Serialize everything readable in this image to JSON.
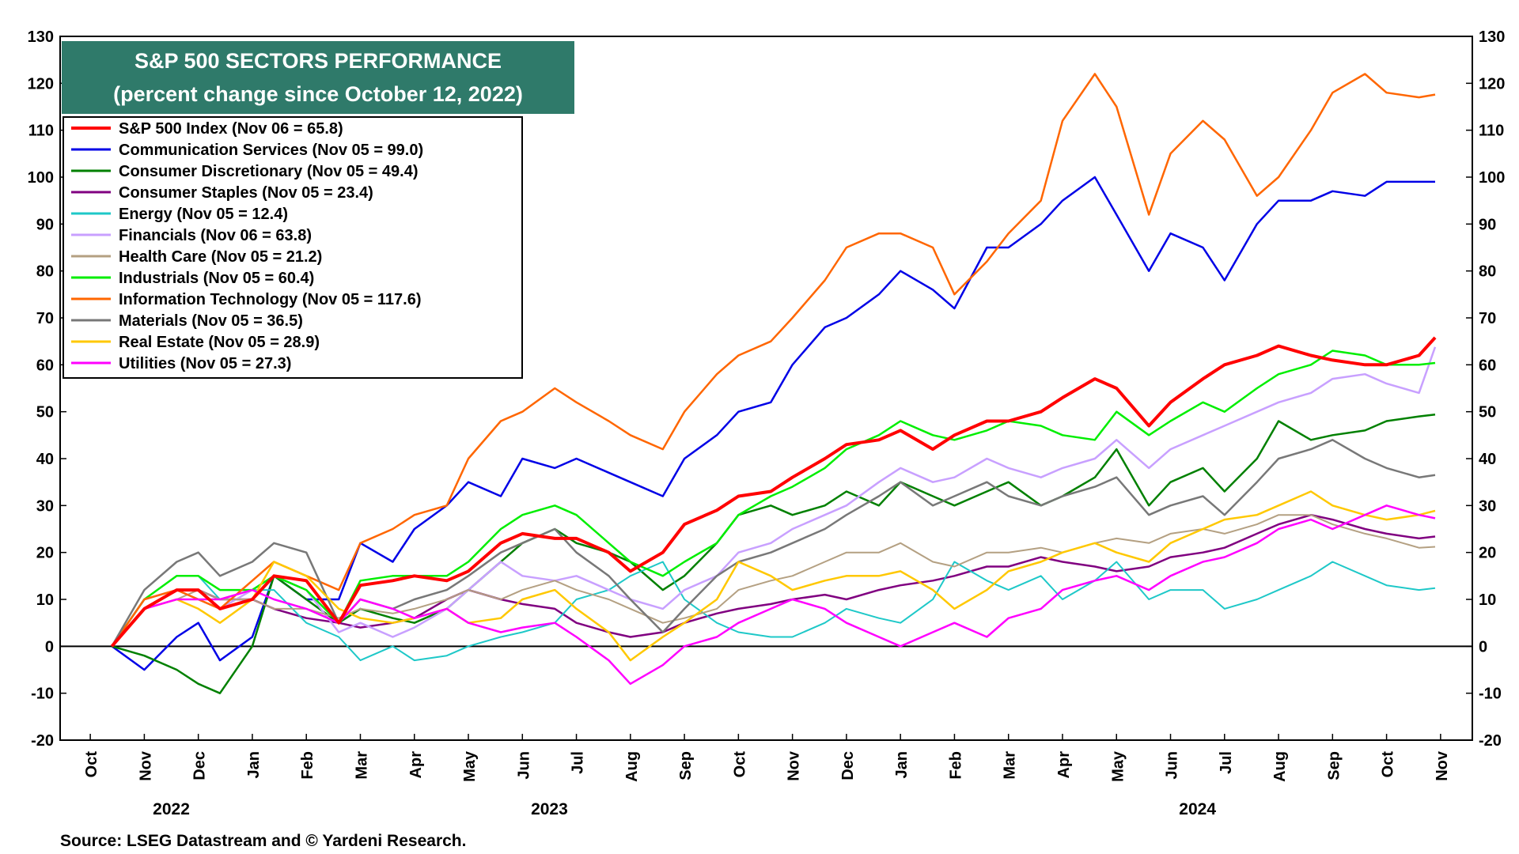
{
  "chart_data": {
    "type": "line",
    "title": "S&P 500 SECTORS PERFORMANCE",
    "subtitle": "(percent change since October 12, 2022)",
    "source": "Source: LSEG Datastream and © Yardeni Research.",
    "ylim": [
      -20,
      130
    ],
    "yticks": [
      "-20",
      "-10",
      "0",
      "10",
      "20",
      "30",
      "40",
      "50",
      "60",
      "70",
      "80",
      "90",
      "100",
      "110",
      "120",
      "130"
    ],
    "months": [
      "Oct",
      "Nov",
      "Dec",
      "Jan",
      "Feb",
      "Mar",
      "Apr",
      "May",
      "Jun",
      "Jul",
      "Aug",
      "Sep",
      "Oct",
      "Nov",
      "Dec",
      "Jan",
      "Feb",
      "Mar",
      "Apr",
      "May",
      "Jun",
      "Jul",
      "Aug",
      "Sep",
      "Oct",
      "Nov"
    ],
    "years": [
      "2022",
      "2023",
      "2024"
    ],
    "x_index_note": "x values are month index: 0 = Oct 2022 ... 25 = Nov 2024",
    "x": [
      0.4,
      1,
      1.6,
      2,
      2.4,
      3,
      3.4,
      4,
      4.6,
      5,
      5.6,
      6,
      6.6,
      7,
      7.6,
      8,
      8.6,
      9,
      9.6,
      10,
      10.6,
      11,
      11.6,
      12,
      12.6,
      13,
      13.6,
      14,
      14.6,
      15,
      15.6,
      16,
      16.6,
      17,
      17.6,
      18,
      18.6,
      19,
      19.6,
      20,
      20.6,
      21,
      21.6,
      22,
      22.6,
      23,
      23.6,
      24,
      24.6,
      24.9
    ],
    "series": [
      {
        "name": "S&P 500 Index",
        "legend": "S&P 500 Index (Nov 06 = 65.8)",
        "color": "#ff0000",
        "width": 4,
        "values": [
          0,
          8,
          12,
          12,
          8,
          10,
          15,
          14,
          5,
          13,
          14,
          15,
          14,
          16,
          22,
          24,
          23,
          23,
          20,
          16,
          20,
          26,
          29,
          32,
          33,
          36,
          40,
          43,
          44,
          46,
          42,
          45,
          48,
          48,
          50,
          53,
          57,
          55,
          47,
          52,
          57,
          60,
          62,
          64,
          62,
          61,
          60,
          60,
          62,
          65.8
        ]
      },
      {
        "name": "Communication Services",
        "legend": "Communication Services (Nov 05 = 99.0)",
        "color": "#0000e6",
        "width": 2.5,
        "values": [
          0,
          -5,
          2,
          5,
          -3,
          2,
          15,
          10,
          10,
          22,
          18,
          25,
          30,
          35,
          32,
          40,
          38,
          40,
          37,
          35,
          32,
          40,
          45,
          50,
          52,
          60,
          68,
          70,
          75,
          80,
          76,
          72,
          85,
          85,
          90,
          95,
          100,
          92,
          80,
          88,
          85,
          78,
          90,
          95,
          95,
          97,
          96,
          99,
          99,
          99
        ]
      },
      {
        "name": "Consumer Discretionary",
        "legend": "Consumer Discretionary (Nov 05 = 49.4)",
        "color": "#008000",
        "width": 2.5,
        "values": [
          0,
          -2,
          -5,
          -8,
          -10,
          0,
          15,
          10,
          5,
          8,
          6,
          5,
          8,
          12,
          18,
          22,
          25,
          22,
          20,
          18,
          12,
          15,
          22,
          28,
          30,
          28,
          30,
          33,
          30,
          35,
          32,
          30,
          33,
          35,
          30,
          32,
          36,
          42,
          30,
          35,
          38,
          33,
          40,
          48,
          44,
          45,
          46,
          48,
          49,
          49.4
        ]
      },
      {
        "name": "Consumer Staples",
        "legend": "Consumer Staples (Nov 05 = 23.4)",
        "color": "#800080",
        "width": 2.5,
        "values": [
          0,
          8,
          12,
          12,
          10,
          10,
          8,
          6,
          5,
          4,
          5,
          6,
          10,
          12,
          10,
          9,
          8,
          5,
          3,
          2,
          3,
          5,
          7,
          8,
          9,
          10,
          11,
          10,
          12,
          13,
          14,
          15,
          17,
          17,
          19,
          18,
          17,
          16,
          17,
          19,
          20,
          21,
          24,
          26,
          28,
          27,
          25,
          24,
          23,
          23.4
        ]
      },
      {
        "name": "Energy",
        "legend": "Energy (Nov 05 = 12.4)",
        "color": "#1ec8c8",
        "width": 2,
        "values": [
          0,
          10,
          15,
          15,
          10,
          12,
          12,
          5,
          2,
          -3,
          0,
          -3,
          -2,
          0,
          2,
          3,
          5,
          10,
          12,
          15,
          18,
          10,
          5,
          3,
          2,
          2,
          5,
          8,
          6,
          5,
          10,
          18,
          14,
          12,
          15,
          10,
          14,
          18,
          10,
          12,
          12,
          8,
          10,
          12,
          15,
          18,
          15,
          13,
          12,
          12.4
        ]
      },
      {
        "name": "Financials",
        "legend": "Financials (Nov 06 = 63.8)",
        "color": "#c8a0ff",
        "width": 2.5,
        "values": [
          0,
          10,
          12,
          10,
          8,
          12,
          15,
          12,
          3,
          5,
          2,
          4,
          8,
          12,
          18,
          15,
          14,
          15,
          12,
          10,
          8,
          12,
          15,
          20,
          22,
          25,
          28,
          30,
          35,
          38,
          35,
          36,
          40,
          38,
          36,
          38,
          40,
          44,
          38,
          42,
          45,
          47,
          50,
          52,
          54,
          57,
          58,
          56,
          54,
          63.8
        ]
      },
      {
        "name": "Health Care",
        "legend": "Health Care (Nov 05 = 21.2)",
        "color": "#b4a082",
        "width": 2,
        "values": [
          0,
          8,
          10,
          12,
          10,
          10,
          8,
          8,
          6,
          8,
          7,
          8,
          10,
          12,
          10,
          12,
          14,
          12,
          10,
          8,
          5,
          6,
          8,
          12,
          14,
          15,
          18,
          20,
          20,
          22,
          18,
          17,
          20,
          20,
          21,
          20,
          22,
          23,
          22,
          24,
          25,
          24,
          26,
          28,
          28,
          26,
          24,
          23,
          21,
          21.2
        ]
      },
      {
        "name": "Industrials",
        "legend": "Industrials (Nov 05 = 60.4)",
        "color": "#00ee00",
        "width": 2.5,
        "values": [
          0,
          10,
          15,
          15,
          12,
          12,
          15,
          12,
          5,
          14,
          15,
          15,
          15,
          18,
          25,
          28,
          30,
          28,
          22,
          18,
          15,
          18,
          22,
          28,
          32,
          34,
          38,
          42,
          45,
          48,
          45,
          44,
          46,
          48,
          47,
          45,
          44,
          50,
          45,
          48,
          52,
          50,
          55,
          58,
          60,
          63,
          62,
          60,
          60,
          60.4
        ]
      },
      {
        "name": "Information Technology",
        "legend": "Information Technology (Nov 05 = 117.6)",
        "color": "#ff6600",
        "width": 2.5,
        "values": [
          0,
          10,
          12,
          10,
          8,
          14,
          18,
          15,
          12,
          22,
          25,
          28,
          30,
          40,
          48,
          50,
          55,
          52,
          48,
          45,
          42,
          50,
          58,
          62,
          65,
          70,
          78,
          85,
          88,
          88,
          85,
          75,
          82,
          88,
          95,
          112,
          122,
          115,
          92,
          105,
          112,
          108,
          96,
          100,
          110,
          118,
          122,
          118,
          117,
          117.6
        ]
      },
      {
        "name": "Materials",
        "legend": "Materials (Nov 05 = 36.5)",
        "color": "#787878",
        "width": 2.5,
        "values": [
          0,
          12,
          18,
          20,
          15,
          18,
          22,
          20,
          5,
          10,
          8,
          10,
          12,
          15,
          20,
          22,
          25,
          20,
          15,
          10,
          3,
          8,
          15,
          18,
          20,
          22,
          25,
          28,
          32,
          35,
          30,
          32,
          35,
          32,
          30,
          32,
          34,
          36,
          28,
          30,
          32,
          28,
          35,
          40,
          42,
          44,
          40,
          38,
          36,
          36.5
        ]
      },
      {
        "name": "Real Estate",
        "legend": "Real Estate (Nov 05 = 28.9)",
        "color": "#ffc800",
        "width": 2.5,
        "values": [
          0,
          8,
          10,
          8,
          5,
          10,
          18,
          15,
          8,
          6,
          5,
          6,
          8,
          5,
          6,
          10,
          12,
          8,
          3,
          -3,
          2,
          5,
          10,
          18,
          15,
          12,
          14,
          15,
          15,
          16,
          12,
          8,
          12,
          16,
          18,
          20,
          22,
          20,
          18,
          22,
          25,
          27,
          28,
          30,
          33,
          30,
          28,
          27,
          28,
          28.9
        ]
      },
      {
        "name": "Utilities",
        "legend": "Utilities (Nov 05 = 27.3)",
        "color": "#ff00ff",
        "width": 2.5,
        "values": [
          0,
          8,
          10,
          10,
          10,
          12,
          10,
          8,
          5,
          10,
          8,
          6,
          8,
          5,
          3,
          4,
          5,
          2,
          -3,
          -8,
          -4,
          0,
          2,
          5,
          8,
          10,
          8,
          5,
          2,
          0,
          3,
          5,
          2,
          6,
          8,
          12,
          14,
          15,
          12,
          15,
          18,
          19,
          22,
          25,
          27,
          25,
          28,
          30,
          28,
          27.3
        ]
      }
    ]
  }
}
